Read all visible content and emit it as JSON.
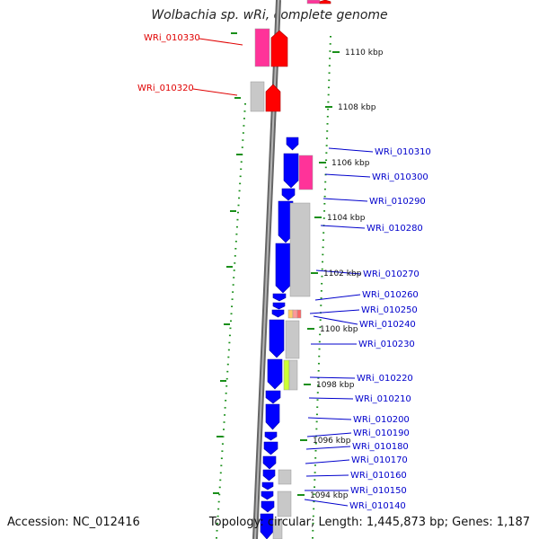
{
  "title": "Wolbachia sp. wRi, complete genome",
  "footer": {
    "accession": "Accession: NC_012416",
    "summary": "Topology: circular; Length: 1,445,873 bp; Genes: 1,187"
  },
  "colors": {
    "cds_forward_red": "#ff0000",
    "cds_reverse_blue": "#0000ff",
    "pseudo_gray": "#c8c8c8",
    "magenta": "#ff3399",
    "tick_green": "#1a8f1a",
    "label_red": "#e00000",
    "label_blue": "#0000cc",
    "backbone": "#888888"
  },
  "scale_labels": [
    "1110 kbp",
    "1108 kbp",
    "1106 kbp",
    "1104 kbp",
    "1102 kbp",
    "1100 kbp",
    "1098 kbp",
    "1096 kbp",
    "1094 kbp"
  ],
  "genes_top": [
    "WRi_010330",
    "WRi_010320"
  ],
  "genes_right": [
    "WRi_010310",
    "WRi_010300",
    "WRi_010290",
    "WRi_010280",
    "WRi_010270",
    "WRi_010260",
    "WRi_010250",
    "WRi_010240",
    "WRi_010230",
    "WRi_010220",
    "WRi_010210",
    "WRi_010200",
    "WRi_010190",
    "WRi_010180",
    "WRi_010170",
    "WRi_010160",
    "WRi_010150",
    "WRi_010140"
  ]
}
